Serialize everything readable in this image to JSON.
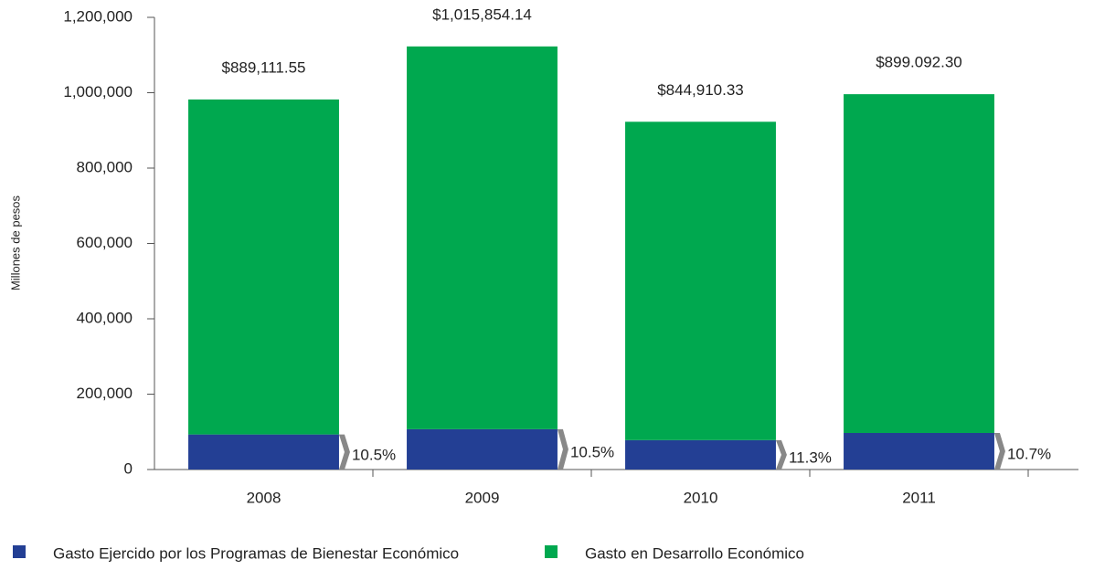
{
  "chart_data": {
    "type": "stacked-bar",
    "y_label": "Millones de pesos",
    "categories": [
      "2008",
      "2009",
      "2010",
      "2011"
    ],
    "series": [
      {
        "name": "Gasto Ejercido por los Programas de Bienestar Económico",
        "color": "#233f94",
        "values": [
          93000,
          107000,
          78000,
          97000
        ]
      },
      {
        "name": "Gasto en Desarrollo Económico",
        "color": "#00a84f",
        "values": [
          889111.55,
          1015854.14,
          844910.33,
          899092.3
        ],
        "value_labels": [
          "$889,111.55",
          "$1,015,854.14",
          "$844,910.33",
          "$899.092.30"
        ]
      }
    ],
    "shares": {
      "values": [
        10.5,
        10.5,
        11.3,
        10.7
      ],
      "value_labels": [
        "10.5%",
        "10.5%",
        "11.3%",
        "10.7%"
      ]
    },
    "ylim": [
      0,
      1200000
    ],
    "yticks": [
      0,
      {
        "value": 200000,
        "label": "200,000"
      },
      {
        "value": 400000,
        "label": "400,000"
      },
      {
        "value": 600000,
        "label": "600,000"
      },
      {
        "value": 800000,
        "label": "800,000"
      },
      {
        "value": 1000000,
        "label": "1,000,000"
      },
      {
        "value": 1200000,
        "label": "1,200,000"
      }
    ]
  }
}
